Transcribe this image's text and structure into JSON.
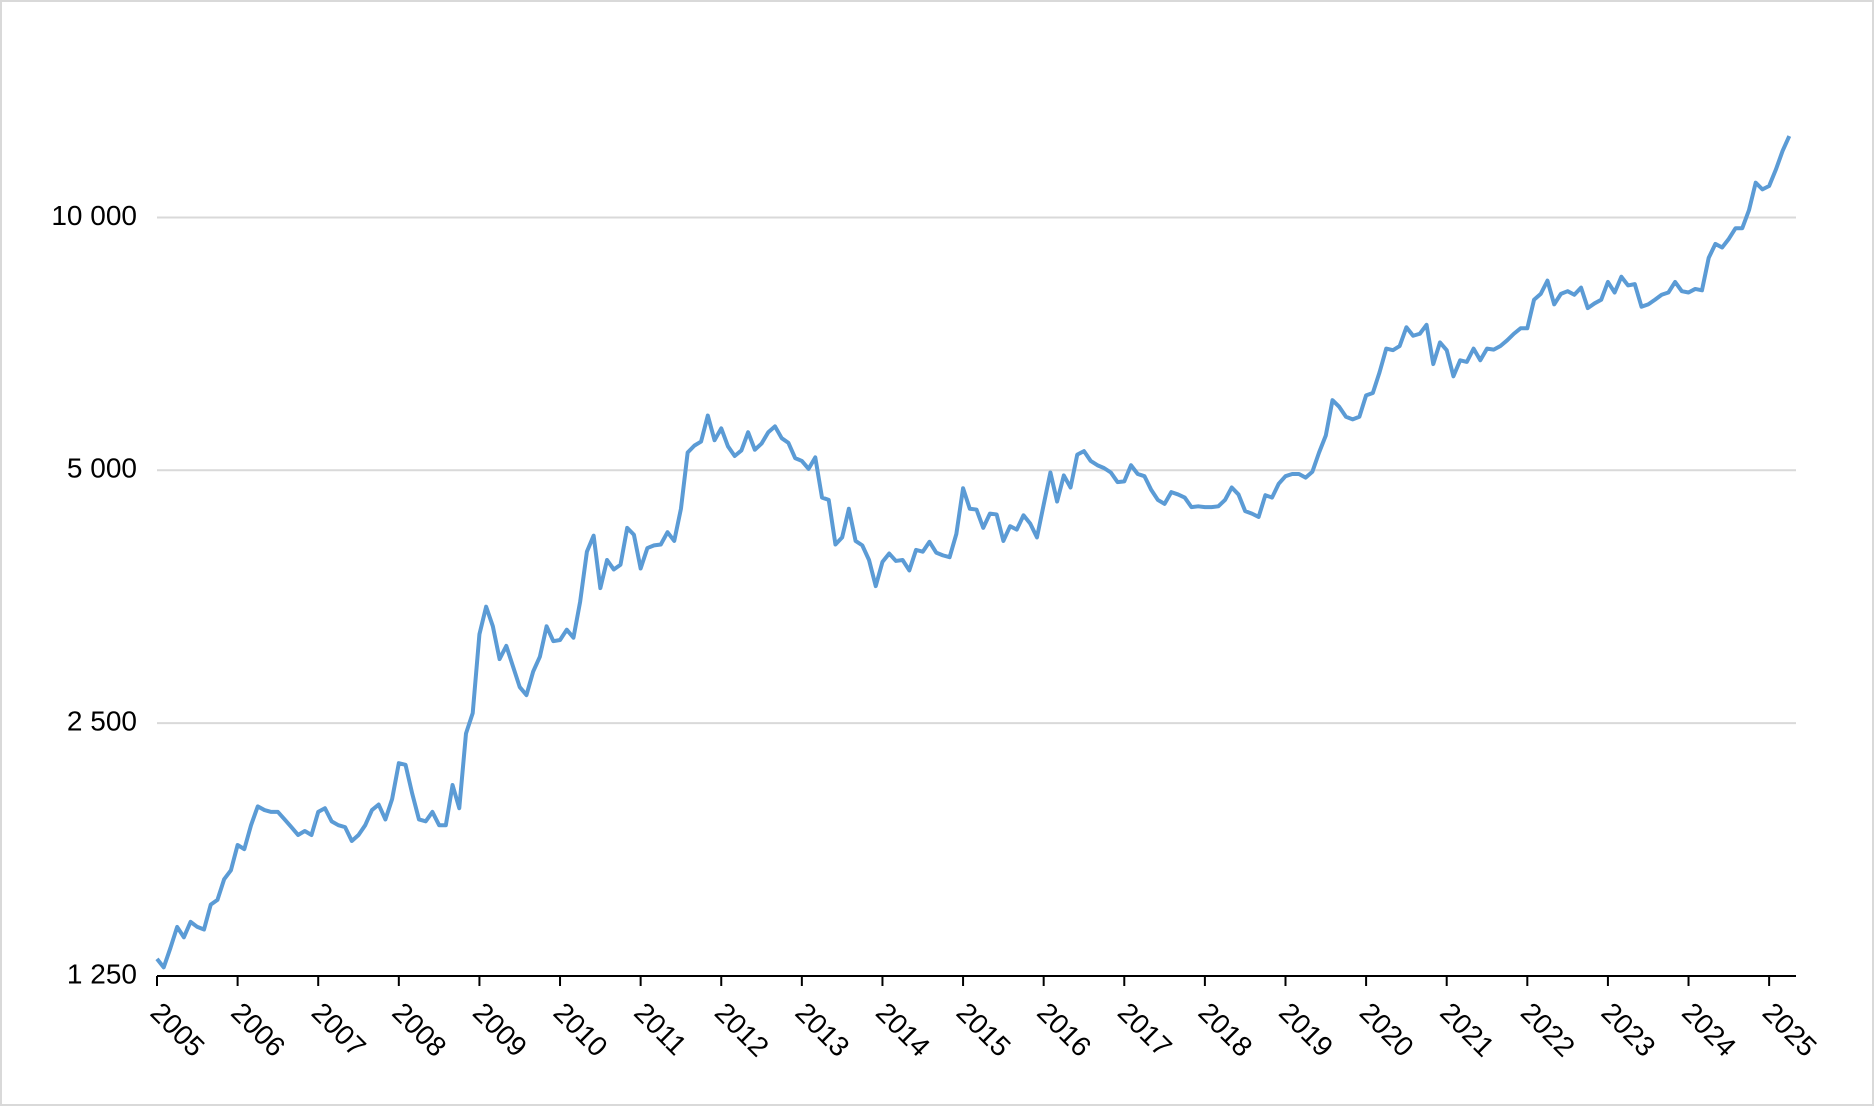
{
  "chart_data": {
    "type": "line",
    "log_scale": true,
    "grid": true,
    "color": "#5b9bd5",
    "categories": [
      "2005",
      null,
      null,
      null,
      null,
      null,
      null,
      null,
      null,
      null,
      null,
      null,
      "2006",
      null,
      null,
      null,
      null,
      null,
      null,
      null,
      null,
      null,
      null,
      null,
      "2007",
      null,
      null,
      null,
      null,
      null,
      null,
      null,
      null,
      null,
      null,
      null,
      "2008",
      null,
      null,
      null,
      null,
      null,
      null,
      null,
      null,
      null,
      null,
      null,
      "2009",
      null,
      null,
      null,
      null,
      null,
      null,
      null,
      null,
      null,
      null,
      null,
      "2010",
      null,
      null,
      null,
      null,
      null,
      null,
      null,
      null,
      null,
      null,
      null,
      "2011",
      null,
      null,
      null,
      null,
      null,
      null,
      null,
      null,
      null,
      null,
      null,
      "2012",
      null,
      null,
      null,
      null,
      null,
      null,
      null,
      null,
      null,
      null,
      null,
      "2013",
      null,
      null,
      null,
      null,
      null,
      null,
      null,
      null,
      null,
      null,
      null,
      "2014",
      null,
      null,
      null,
      null,
      null,
      null,
      null,
      null,
      null,
      null,
      null,
      "2015",
      null,
      null,
      null,
      null,
      null,
      null,
      null,
      null,
      null,
      null,
      null,
      "2016",
      null,
      null,
      null,
      null,
      null,
      null,
      null,
      null,
      null,
      null,
      null,
      "2017",
      null,
      null,
      null,
      null,
      null,
      null,
      null,
      null,
      null,
      null,
      null,
      "2018",
      null,
      null,
      null,
      null,
      null,
      null,
      null,
      null,
      null,
      null,
      null,
      "2019",
      null,
      null,
      null,
      null,
      null,
      null,
      null,
      null,
      null,
      null,
      null,
      "2020",
      null,
      null,
      null,
      null,
      null,
      null,
      null,
      null,
      null,
      null,
      null,
      "2021",
      null,
      null,
      null,
      null,
      null,
      null,
      null,
      null,
      null,
      null,
      null,
      "2022",
      null,
      null,
      null,
      null,
      null,
      null,
      null,
      null,
      null,
      null,
      null,
      "2023",
      null,
      null,
      null,
      null,
      null,
      null,
      null,
      null,
      null,
      null,
      null,
      "2024",
      null,
      null,
      null,
      null,
      null,
      null,
      null,
      null,
      null,
      null,
      null,
      "2025",
      null,
      null,
      null
    ],
    "values": [
      1310,
      1280,
      1350,
      1430,
      1390,
      1450,
      1430,
      1420,
      1520,
      1540,
      1630,
      1670,
      1790,
      1770,
      1890,
      1990,
      1970,
      1960,
      1960,
      1920,
      1880,
      1840,
      1860,
      1840,
      1960,
      1980,
      1910,
      1890,
      1880,
      1810,
      1840,
      1890,
      1970,
      2000,
      1920,
      2030,
      2240,
      2230,
      2060,
      1920,
      1910,
      1960,
      1890,
      1890,
      2110,
      1980,
      2430,
      2570,
      3190,
      3440,
      3260,
      2980,
      3090,
      2920,
      2760,
      2700,
      2880,
      3000,
      3260,
      3130,
      3140,
      3230,
      3160,
      3490,
      4000,
      4180,
      3620,
      3910,
      3810,
      3860,
      4270,
      4190,
      3820,
      4040,
      4070,
      4080,
      4220,
      4120,
      4500,
      5250,
      5350,
      5410,
      5810,
      5430,
      5610,
      5340,
      5200,
      5280,
      5550,
      5290,
      5380,
      5550,
      5640,
      5460,
      5390,
      5170,
      5130,
      5020,
      5180,
      4640,
      4610,
      4080,
      4160,
      4500,
      4120,
      4070,
      3910,
      3640,
      3890,
      3980,
      3900,
      3910,
      3800,
      4020,
      4000,
      4110,
      3990,
      3960,
      3940,
      4200,
      4760,
      4500,
      4490,
      4270,
      4440,
      4430,
      4120,
      4290,
      4250,
      4420,
      4320,
      4160,
      4550,
      4970,
      4590,
      4930,
      4770,
      5220,
      5270,
      5130,
      5070,
      5030,
      4970,
      4840,
      4850,
      5070,
      4950,
      4920,
      4740,
      4610,
      4560,
      4710,
      4680,
      4640,
      4520,
      4530,
      4520,
      4520,
      4530,
      4610,
      4770,
      4680,
      4470,
      4440,
      4400,
      4670,
      4640,
      4820,
      4920,
      4950,
      4950,
      4900,
      4980,
      5250,
      5500,
      6060,
      5950,
      5790,
      5750,
      5790,
      6140,
      6180,
      6540,
      6980,
      6950,
      7030,
      7400,
      7230,
      7270,
      7450,
      6690,
      7100,
      6950,
      6470,
      6760,
      6730,
      6980,
      6760,
      6980,
      6960,
      7030,
      7140,
      7270,
      7380,
      7380,
      7980,
      8110,
      8410,
      7880,
      8110,
      8170,
      8090,
      8250,
      7800,
      7900,
      7980,
      8380,
      8140,
      8500,
      8300,
      8330,
      7830,
      7880,
      7980,
      8090,
      8140,
      8380,
      8170,
      8140,
      8220,
      8190,
      8950,
      9300,
      9210,
      9430,
      9710,
      9710,
      10200,
      11000,
      10800,
      10900,
      11400,
      12000,
      12500
    ],
    "ylim": [
      1250,
      16000
    ],
    "yticks": [
      {
        "value": 1250,
        "label": "1 250"
      },
      {
        "value": 2500,
        "label": "2 500"
      },
      {
        "value": 5000,
        "label": "5 000"
      },
      {
        "value": 10000,
        "label": "10 000"
      }
    ]
  }
}
